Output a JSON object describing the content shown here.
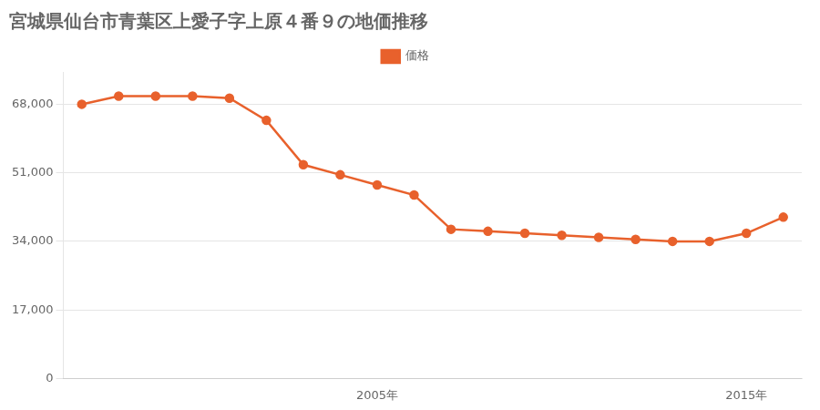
{
  "chart_data": {
    "type": "line",
    "title": "宮城県仙台市青葉区上愛子字上原４番９の地価推移",
    "x": [
      1997,
      1998,
      1999,
      2000,
      2001,
      2002,
      2003,
      2004,
      2005,
      2006,
      2007,
      2008,
      2009,
      2010,
      2011,
      2012,
      2013,
      2014,
      2015,
      2016
    ],
    "series": [
      {
        "name": "価格",
        "color": "#e8612c",
        "values": [
          68000,
          70000,
          70000,
          70000,
          69500,
          64000,
          53000,
          50500,
          48000,
          45500,
          37000,
          36500,
          36000,
          35500,
          35000,
          34500,
          34000,
          34000,
          36000,
          40000
        ]
      }
    ],
    "xlim": [
      1996.5,
      2016.5
    ],
    "xticks": [
      {
        "value": 2005,
        "label": "2005年"
      },
      {
        "value": 2015,
        "label": "2015年"
      }
    ],
    "ylim": [
      0,
      76000
    ],
    "yticks": [
      0,
      {
        "value": 17000,
        "label": "17,000"
      },
      {
        "value": 34000,
        "label": "34,000"
      },
      {
        "value": 51000,
        "label": "51,000"
      },
      {
        "value": 68000,
        "label": "68,000"
      }
    ],
    "grid": "y",
    "legend": "top",
    "marker": "circle",
    "line_style": "solid"
  }
}
